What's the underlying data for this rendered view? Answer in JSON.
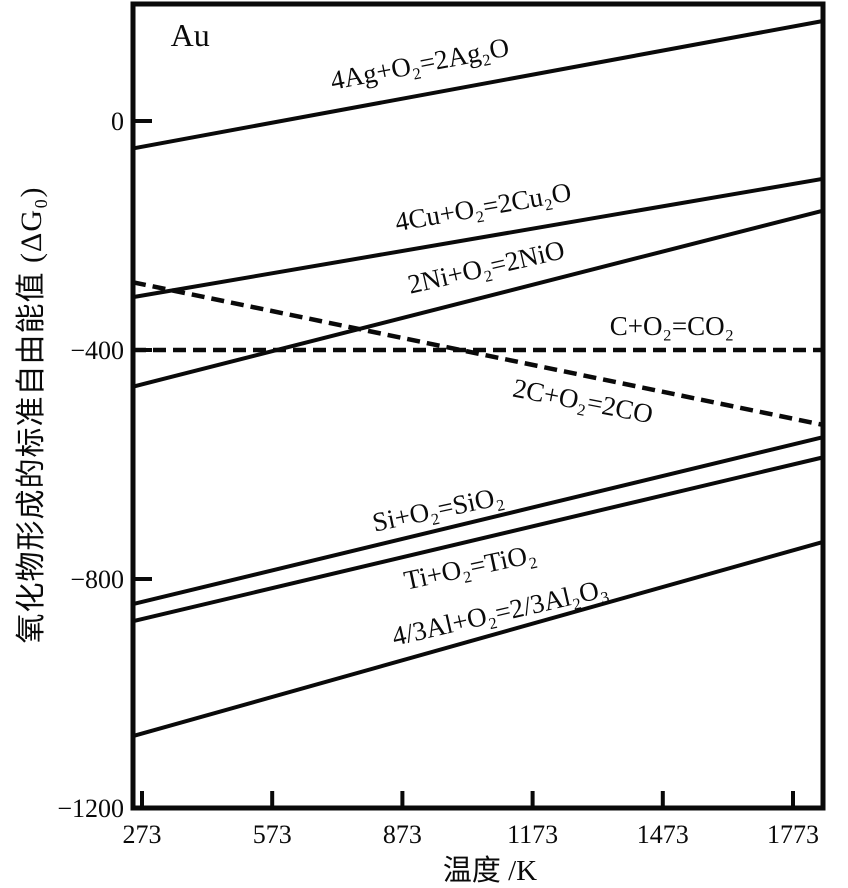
{
  "figure": {
    "background": "#ffffff",
    "ink": "#0a0a0a"
  },
  "chart_data": {
    "type": "line",
    "xlabel": "温度 /K",
    "ylabel": "氧化物形成的标准自由能值 (ΔG₀)",
    "x_ticks": [
      273,
      573,
      873,
      1173,
      1473,
      1773
    ],
    "y_ticks": [
      0,
      -400,
      -800,
      -1200
    ],
    "xlim": [
      273,
      1773
    ],
    "ylim": [
      -1200,
      210
    ],
    "grid": false,
    "legend_position": "labels-along-lines",
    "corner_annotation": {
      "text": "Au",
      "x": 384,
      "y": 150
    },
    "series": [
      {
        "id": "ag2o",
        "name": "4Ag+O₂=2Ag₂O",
        "style": "solid",
        "x": [
          273,
          1773
        ],
        "y": [
          -45,
          165
        ],
        "label": {
          "x": 913,
          "y": 100,
          "rotation": -11
        }
      },
      {
        "id": "cu2o",
        "name": "4Cu+O₂=2Cu₂O",
        "style": "solid",
        "x": [
          273,
          1773
        ],
        "y": [
          -305,
          -110
        ],
        "label": {
          "x": 1059,
          "y": -150,
          "rotation": -10
        }
      },
      {
        "id": "nio",
        "name": "2Ni+O₂=2NiO",
        "style": "solid",
        "x": [
          273,
          1773
        ],
        "y": [
          -460,
          -170
        ],
        "label": {
          "x": 1066,
          "y": -255,
          "rotation": -13
        }
      },
      {
        "id": "co2",
        "name": "C+O₂=CO₂",
        "style": "dashed",
        "x": [
          273,
          1773
        ],
        "y": [
          -400,
          -400
        ],
        "label": {
          "x": 1494,
          "y": -358,
          "rotation": 0
        }
      },
      {
        "id": "co",
        "name": "2C+O₂=2CO",
        "style": "dashed",
        "x": [
          273,
          1773
        ],
        "y": [
          -285,
          -520
        ],
        "label": {
          "x": 1289,
          "y": -489,
          "rotation": 11
        }
      },
      {
        "id": "sio2",
        "name": "Si+O₂=SiO₂",
        "style": "solid",
        "x": [
          273,
          1773
        ],
        "y": [
          -840,
          -565
        ],
        "label": {
          "x": 955,
          "y": -678,
          "rotation": -12
        }
      },
      {
        "id": "tio2",
        "name": "Ti+O₂=TiO₂",
        "style": "solid",
        "x": [
          273,
          1773
        ],
        "y": [
          -870,
          -600
        ],
        "label": {
          "x": 1029,
          "y": -779,
          "rotation": -12
        }
      },
      {
        "id": "al2o3",
        "name": "4/3Al+O₂=2/3Al₂O₃",
        "style": "solid",
        "x": [
          273,
          1773
        ],
        "y": [
          -1070,
          -750
        ],
        "label": {
          "x": 1098,
          "y": -858,
          "rotation": -13
        }
      }
    ]
  }
}
